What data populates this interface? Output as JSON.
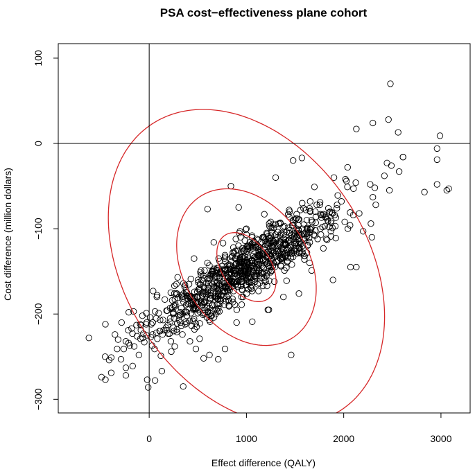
{
  "chart_data": {
    "type": "scatter",
    "title": "PSA cost−effectiveness plane cohort",
    "xlabel": "Effect difference (QALY)",
    "ylabel": "Cost difference (million dollars)",
    "xlim": [
      -935,
      3300
    ],
    "ylim": [
      -316,
      117
    ],
    "x_ticks": [
      0,
      1000,
      2000,
      3000
    ],
    "y_ticks": [
      -300,
      -200,
      -100,
      0,
      100
    ],
    "x_tick_labels": [
      "0",
      "1000",
      "2000",
      "3000"
    ],
    "y_tick_labels": [
      "−300",
      "−200",
      "−100",
      "0",
      "100"
    ],
    "reference_lines": {
      "x": 0,
      "y": 0
    },
    "grid": false,
    "legend": "none",
    "point_color": "#000000",
    "ellipse_color": "#d62728",
    "ellipse_center": {
      "x": 1000,
      "y": -145
    },
    "ellipses": [
      {
        "level": "outer",
        "rx": 1240,
        "ry": 67,
        "angle_deg": 33.5
      },
      {
        "level": "middle",
        "rx": 640,
        "ry": 33,
        "angle_deg": 33.5
      },
      {
        "level": "inner",
        "rx": 250,
        "ry": 15,
        "angle_deg": 34.5
      }
    ],
    "n_points": 1000,
    "points": [
      [
        2480,
        70
      ],
      [
        2460,
        28
      ],
      [
        2560,
        13
      ],
      [
        2130,
        17
      ],
      [
        2300,
        24
      ],
      [
        2490,
        -26
      ],
      [
        2990,
        9
      ],
      [
        2960,
        -6
      ],
      [
        2960,
        -19
      ],
      [
        2960,
        -48
      ],
      [
        3080,
        -53
      ],
      [
        3060,
        -55
      ],
      [
        2830,
        -57
      ],
      [
        2610,
        -16
      ],
      [
        2570,
        -33
      ],
      [
        2330,
        -72
      ],
      [
        2300,
        -63
      ],
      [
        2280,
        -94
      ],
      [
        2200,
        -103
      ],
      [
        2290,
        -110
      ],
      [
        2130,
        -145
      ],
      [
        2070,
        -145
      ],
      [
        2010,
        -92
      ],
      [
        1890,
        -160
      ],
      [
        1760,
        -100
      ],
      [
        1670,
        -149
      ],
      [
        1540,
        -176
      ],
      [
        1480,
        -20
      ],
      [
        1570,
        -17
      ],
      [
        1300,
        -40
      ],
      [
        1590,
        -95
      ],
      [
        1650,
        -140
      ],
      [
        -620,
        -228
      ],
      [
        -450,
        -212
      ],
      [
        -490,
        -274
      ],
      [
        -450,
        -277
      ],
      [
        -390,
        -269
      ],
      [
        -240,
        -272
      ],
      [
        -240,
        -263
      ],
      [
        -330,
        -241
      ],
      [
        -170,
        -261
      ],
      [
        -90,
        -229
      ],
      [
        -60,
        -223
      ],
      [
        -70,
        -202
      ],
      [
        -20,
        -277
      ],
      [
        -10,
        -286
      ],
      [
        60,
        -278
      ],
      [
        120,
        -249
      ],
      [
        130,
        -267
      ],
      [
        350,
        -285
      ],
      [
        -160,
        -197
      ],
      [
        -130,
        -213
      ],
      [
        -50,
        -233
      ],
      [
        -30,
        -212
      ],
      [
        10,
        -204
      ],
      [
        40,
        -173
      ],
      [
        60,
        -197
      ],
      [
        30,
        -237
      ],
      [
        -390,
        -251
      ],
      [
        -320,
        -230
      ],
      [
        480,
        -241
      ],
      [
        620,
        -248
      ],
      [
        560,
        -252
      ],
      [
        900,
        -195
      ],
      [
        1230,
        -195
      ],
      [
        1380,
        -180
      ],
      [
        1220,
        -195
      ],
      [
        920,
        -75
      ],
      [
        600,
        -77
      ],
      [
        840,
        -50
      ],
      [
        1460,
        -248
      ],
      [
        1820,
        -112
      ],
      [
        1060,
        -209
      ],
      [
        1540,
        -112
      ],
      [
        710,
        -253
      ],
      [
        780,
        -241
      ],
      [
        950,
        -180
      ],
      [
        1180,
        -110
      ],
      [
        1900,
        -40
      ],
      [
        2040,
        -28
      ]
    ]
  }
}
